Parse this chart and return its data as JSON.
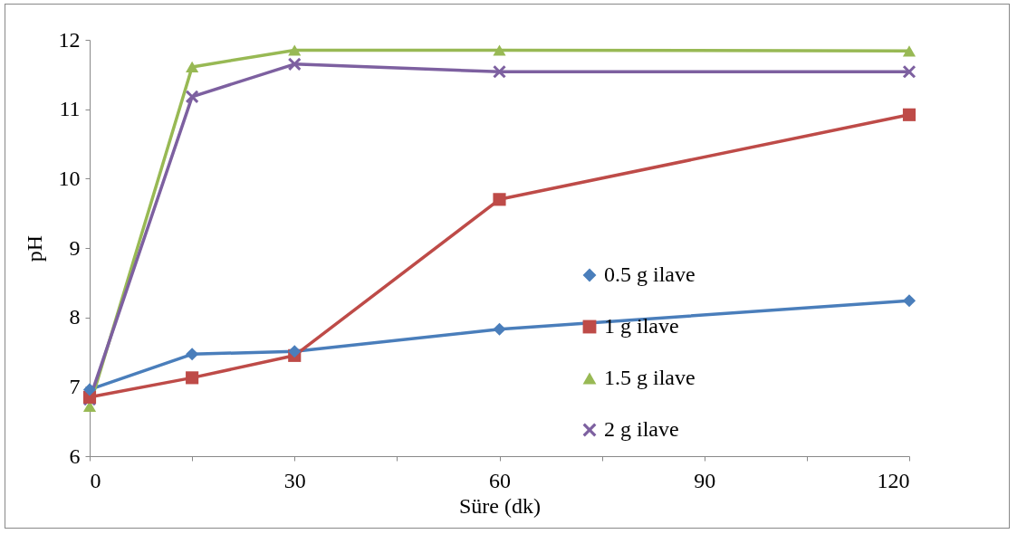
{
  "chart_data": {
    "type": "line",
    "xlabel": "Süre (dk)",
    "ylabel": "pH",
    "x": [
      0,
      15,
      30,
      60,
      120
    ],
    "xlim": [
      0,
      120
    ],
    "xticks": [
      0,
      {
        "value": 15,
        "label": null
      },
      30,
      {
        "value": 45,
        "label": null
      },
      60,
      {
        "value": 75,
        "label": null
      },
      90,
      {
        "value": 105,
        "label": null
      },
      120
    ],
    "ylim": [
      6,
      12
    ],
    "yticks": [
      6,
      7,
      8,
      9,
      10,
      11,
      12
    ],
    "grid": false,
    "legend": "bottom right",
    "series": [
      {
        "name": "0.5 g ilave",
        "color": "#4a7ebb",
        "marker": "diamond",
        "values": [
          6.96,
          7.47,
          7.51,
          7.83,
          8.24
        ]
      },
      {
        "name": "1 g ilave",
        "color": "#be4b48",
        "marker": "square",
        "values": [
          6.85,
          7.13,
          7.45,
          9.7,
          10.92
        ]
      },
      {
        "name": "1.5 g ilave",
        "color": "#98b954",
        "marker": "triangle",
        "values": [
          6.72,
          11.61,
          11.85,
          11.85,
          11.84
        ]
      },
      {
        "name": "2 g ilave",
        "color": "#7d60a0",
        "marker": "cross",
        "values": [
          6.82,
          11.18,
          11.65,
          11.54,
          11.54
        ]
      }
    ]
  }
}
